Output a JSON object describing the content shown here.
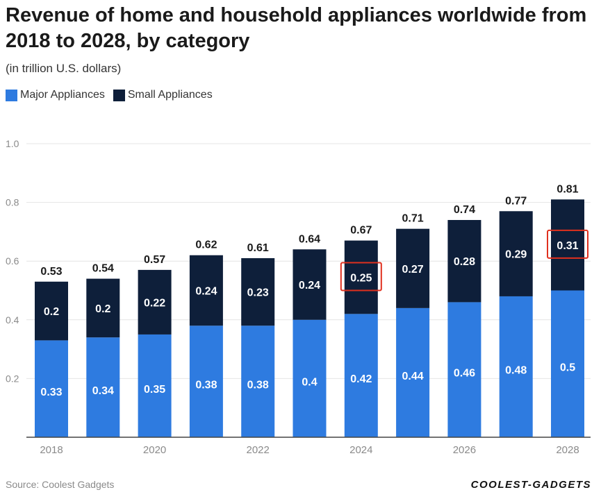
{
  "header": {
    "title": "Revenue of home and household appliances worldwide from 2018 to 2028, by category",
    "subtitle": "(in trillion U.S. dollars)"
  },
  "legend": {
    "major": "Major Appliances",
    "small": "Small Appliances"
  },
  "footer": {
    "source": "Source: Coolest Gadgets",
    "brand": "COOLEST-GADGETS"
  },
  "colors": {
    "major": "#2e7be0",
    "small": "#0e1f3a",
    "highlight": "#e0301e",
    "grid": "#e4e4e4",
    "axis_text": "#8a8a8a"
  },
  "chart_data": {
    "type": "bar",
    "stacked": true,
    "title": "Revenue of home and household appliances worldwide from 2018 to 2028, by category",
    "subtitle": "(in trillion U.S. dollars)",
    "categories": [
      "2018",
      "2019",
      "2020",
      "2021",
      "2022",
      "2023",
      "2024",
      "2025",
      "2026",
      "2027",
      "2028"
    ],
    "x_tick_labels": [
      "2018",
      "",
      "2020",
      "",
      "2022",
      "",
      "2024",
      "",
      "2026",
      "",
      "2028"
    ],
    "series": [
      {
        "name": "Major Appliances",
        "values": [
          0.33,
          0.34,
          0.35,
          0.38,
          0.38,
          0.4,
          0.42,
          0.44,
          0.46,
          0.48,
          0.5
        ]
      },
      {
        "name": "Small Appliances",
        "values": [
          0.2,
          0.2,
          0.22,
          0.24,
          0.23,
          0.24,
          0.25,
          0.27,
          0.28,
          0.29,
          0.31
        ]
      }
    ],
    "totals": [
      0.53,
      0.54,
      0.57,
      0.62,
      0.61,
      0.64,
      0.67,
      0.71,
      0.74,
      0.77,
      0.81
    ],
    "value_labels": {
      "major": [
        "0.33",
        "0.34",
        "0.35",
        "0.38",
        "0.38",
        "0.4",
        "0.42",
        "0.44",
        "0.46",
        "0.48",
        "0.5"
      ],
      "small": [
        "0.2",
        "0.2",
        "0.22",
        "0.24",
        "0.23",
        "0.24",
        "0.25",
        "0.27",
        "0.28",
        "0.29",
        "0.31"
      ],
      "totals": [
        "0.53",
        "0.54",
        "0.57",
        "0.62",
        "0.61",
        "0.64",
        "0.67",
        "0.71",
        "0.74",
        "0.77",
        "0.81"
      ]
    },
    "y_ticks": [
      0.2,
      0.4,
      0.6,
      0.8,
      1.0
    ],
    "y_tick_labels": [
      "0.2",
      "0.4",
      "0.6",
      "0.8",
      "1.0"
    ],
    "ylim": [
      0,
      1.0
    ],
    "grid": true,
    "legend_position": "top-left",
    "highlighted_labels": [
      {
        "series": "Small Appliances",
        "category": "2024"
      },
      {
        "series": "Small Appliances",
        "category": "2028"
      }
    ]
  }
}
